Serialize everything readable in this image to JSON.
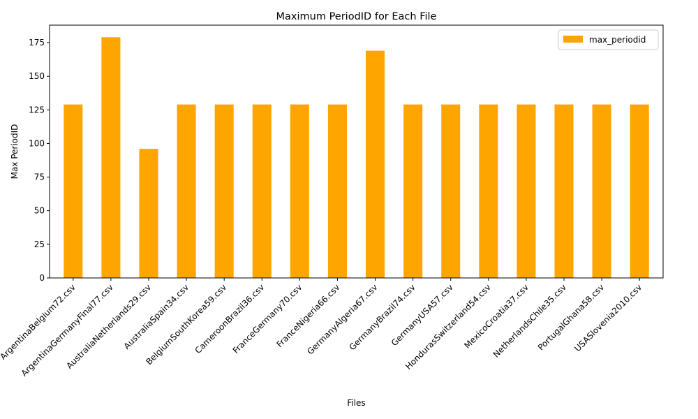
{
  "chart_data": {
    "type": "bar",
    "title": "Maximum PeriodID for Each File",
    "xlabel": "Files",
    "ylabel": "Max PeriodID",
    "ylim": [
      0,
      188
    ],
    "yticks": [
      0,
      25,
      50,
      75,
      100,
      125,
      150,
      175
    ],
    "legend_position": "top-right",
    "grid": false,
    "categories": [
      "ArgentinaBelgium72.csv",
      "ArgentinaGermanyFinal77.csv",
      "AustraliaNetherlands29.csv",
      "AustraliaSpain34.csv",
      "BelgiumSouthKorea59.csv",
      "CameroonBrazil36.csv",
      "FranceGermany70.csv",
      "FranceNigeria66.csv",
      "GermanyAlgeria67.csv",
      "GermanyBrazil74.csv",
      "GermanyUSA57.csv",
      "HondurasSwitzerland54.csv",
      "MexicoCroatia37.csv",
      "NetherlandsChile35.csv",
      "PortugalGhana58.csv",
      "USASlovenia2010.csv"
    ],
    "series": [
      {
        "name": "max_periodid",
        "color": "#ffa500",
        "values": [
          129,
          179,
          96,
          129,
          129,
          129,
          129,
          129,
          169,
          129,
          129,
          129,
          129,
          129,
          129,
          129
        ]
      }
    ]
  }
}
